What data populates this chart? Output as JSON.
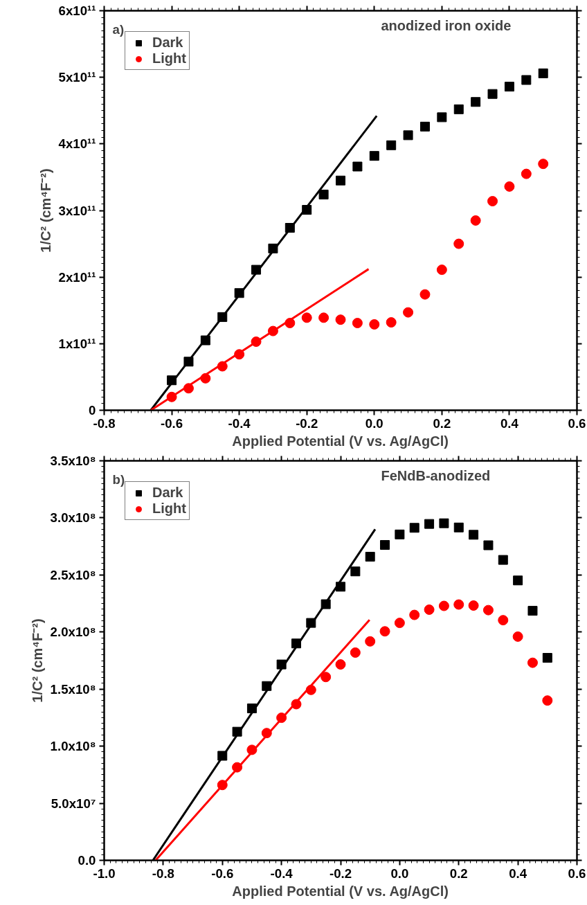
{
  "chart_data": [
    {
      "type": "scatter",
      "title": "anodized iron oxide",
      "annotations": [
        "a)"
      ],
      "xlabel": "Applied Potential (V vs. Ag/AgCl)",
      "ylabel": "1/C² (cm⁴F⁻²)",
      "x": [
        -0.6,
        -0.55,
        -0.5,
        -0.45,
        -0.4,
        -0.35,
        -0.3,
        -0.25,
        -0.2,
        -0.15,
        -0.1,
        -0.05,
        0.0,
        0.05,
        0.1,
        0.15,
        0.2,
        0.25,
        0.3,
        0.35,
        0.4,
        0.45,
        0.5
      ],
      "series": [
        {
          "name": "Dark",
          "color": "#000000",
          "marker": "square",
          "values": [
            45000000000.0,
            73000000000.0,
            105000000000.0,
            140000000000.0,
            176000000000.0,
            211000000000.0,
            243000000000.0,
            274000000000.0,
            301000000000.0,
            324000000000.0,
            345000000000.0,
            366000000000.0,
            382000000000.0,
            398000000000.0,
            413000000000.0,
            426000000000.0,
            440000000000.0,
            452000000000.0,
            463000000000.0,
            475000000000.0,
            486000000000.0,
            496000000000.0,
            506000000000.0
          ]
        },
        {
          "name": "Light",
          "color": "#ff0000",
          "marker": "circle",
          "values": [
            20000000000.0,
            33000000000.0,
            48000000000.0,
            66000000000.0,
            84000000000.0,
            103000000000.0,
            119000000000.0,
            131000000000.0,
            139000000000.0,
            139000000000.0,
            136000000000.0,
            131000000000.0,
            129000000000.0,
            132000000000.0,
            147000000000.0,
            174000000000.0,
            211000000000.0,
            250000000000.0,
            285000000000.0,
            314000000000.0,
            336000000000.0,
            355000000000.0,
            370000000000.0
          ]
        },
        {
          "type": "line",
          "color": "#000000",
          "x": [
            -0.662,
            0.007
          ],
          "values": [
            0,
            442000000000.0
          ]
        },
        {
          "type": "line",
          "color": "#ff0000",
          "x": [
            -0.662,
            -0.017
          ],
          "values": [
            0,
            212000000000.0
          ]
        }
      ],
      "xlim": [
        -0.8,
        0.6
      ],
      "ylim": [
        0,
        600000000000.0
      ],
      "xticks": [
        {
          "value": -0.8,
          "label": "-0.8"
        },
        {
          "value": -0.6,
          "label": "-0.6"
        },
        {
          "value": -0.4,
          "label": "-0.4"
        },
        {
          "value": -0.2,
          "label": "-0.2"
        },
        {
          "value": 0.0,
          "label": "0.0"
        },
        {
          "value": 0.2,
          "label": "0.2"
        },
        {
          "value": 0.4,
          "label": "0.4"
        },
        {
          "value": 0.6,
          "label": "0.6"
        }
      ],
      "yticks": [
        {
          "value": 0,
          "label": "0"
        },
        {
          "value": 100000000000.0,
          "label": "1x10¹¹"
        },
        {
          "value": 200000000000.0,
          "label": "2x10¹¹"
        },
        {
          "value": 300000000000.0,
          "label": "3x10¹¹"
        },
        {
          "value": 400000000000.0,
          "label": "4x10¹¹"
        },
        {
          "value": 500000000000.0,
          "label": "5x10¹¹"
        },
        {
          "value": 600000000000.0,
          "label": "6x10¹¹"
        }
      ],
      "legend": "top left",
      "grid": false
    },
    {
      "type": "scatter",
      "title": "FeNdB-anodized",
      "annotations": [
        "b)"
      ],
      "xlabel": "Applied Potential (V vs. Ag/AgCl)",
      "ylabel": "1/C² (cm⁴F⁻²)",
      "x": [
        -0.6,
        -0.55,
        -0.5,
        -0.45,
        -0.4,
        -0.35,
        -0.3,
        -0.25,
        -0.2,
        -0.15,
        -0.1,
        -0.05,
        0.0,
        0.05,
        0.1,
        0.15,
        0.2,
        0.25,
        0.3,
        0.35,
        0.4,
        0.45,
        0.5
      ],
      "series": [
        {
          "name": "Dark",
          "color": "#000000",
          "marker": "square",
          "values": [
            91600000.0,
            112700000.0,
            133100000.0,
            152700000.0,
            171600000.0,
            190000000.0,
            208000000.0,
            224400000.0,
            239700000.0,
            253100000.0,
            266000000.0,
            276300000.0,
            285500000.0,
            291300000.0,
            294700000.0,
            295300000.0,
            291600000.0,
            285200000.0,
            276000000.0,
            263200000.0,
            245200000.0,
            218600000.0,
            177400000.0
          ]
        },
        {
          "name": "Light",
          "color": "#ff0000",
          "marker": "circle",
          "values": [
            66000000.0,
            81500000.0,
            96800000.0,
            111500000.0,
            124900000.0,
            136800000.0,
            149300000.0,
            160600000.0,
            171600000.0,
            182000000.0,
            191800000.0,
            200600000.0,
            208000000.0,
            215000000.0,
            219600000.0,
            222900000.0,
            224100000.0,
            223200000.0,
            219200000.0,
            210400000.0,
            196000000.0,
            173100000.0,
            140000000.0
          ]
        },
        {
          "type": "line",
          "color": "#000000",
          "x": [
            -0.835,
            -0.083
          ],
          "values": [
            0,
            290000000.0
          ]
        },
        {
          "type": "line",
          "color": "#ff0000",
          "x": [
            -0.826,
            -0.102
          ],
          "values": [
            0,
            210700000.0
          ]
        }
      ],
      "xlim": [
        -1.0,
        0.6
      ],
      "ylim": [
        0,
        350000000.0
      ],
      "xticks": [
        {
          "value": -1.0,
          "label": "-1.0"
        },
        {
          "value": -0.8,
          "label": "-0.8"
        },
        {
          "value": -0.6,
          "label": "-0.6"
        },
        {
          "value": -0.4,
          "label": "-0.4"
        },
        {
          "value": -0.2,
          "label": "-0.2"
        },
        {
          "value": 0.0,
          "label": "0.0"
        },
        {
          "value": 0.2,
          "label": "0.2"
        },
        {
          "value": 0.4,
          "label": "0.4"
        },
        {
          "value": 0.6,
          "label": "0.6"
        }
      ],
      "yticks": [
        {
          "value": 0,
          "label": "0.0"
        },
        {
          "value": 50000000.0,
          "label": "5.0x10⁷"
        },
        {
          "value": 100000000.0,
          "label": "1.0x10⁸"
        },
        {
          "value": 150000000.0,
          "label": "1.5x10⁸"
        },
        {
          "value": 200000000.0,
          "label": "2.0x10⁸"
        },
        {
          "value": 250000000.0,
          "label": "2.5x10⁸"
        },
        {
          "value": 300000000.0,
          "label": "3.0x10⁸"
        },
        {
          "value": 350000000.0,
          "label": "3.5x10⁸"
        }
      ],
      "legend": "top left",
      "grid": false
    }
  ]
}
